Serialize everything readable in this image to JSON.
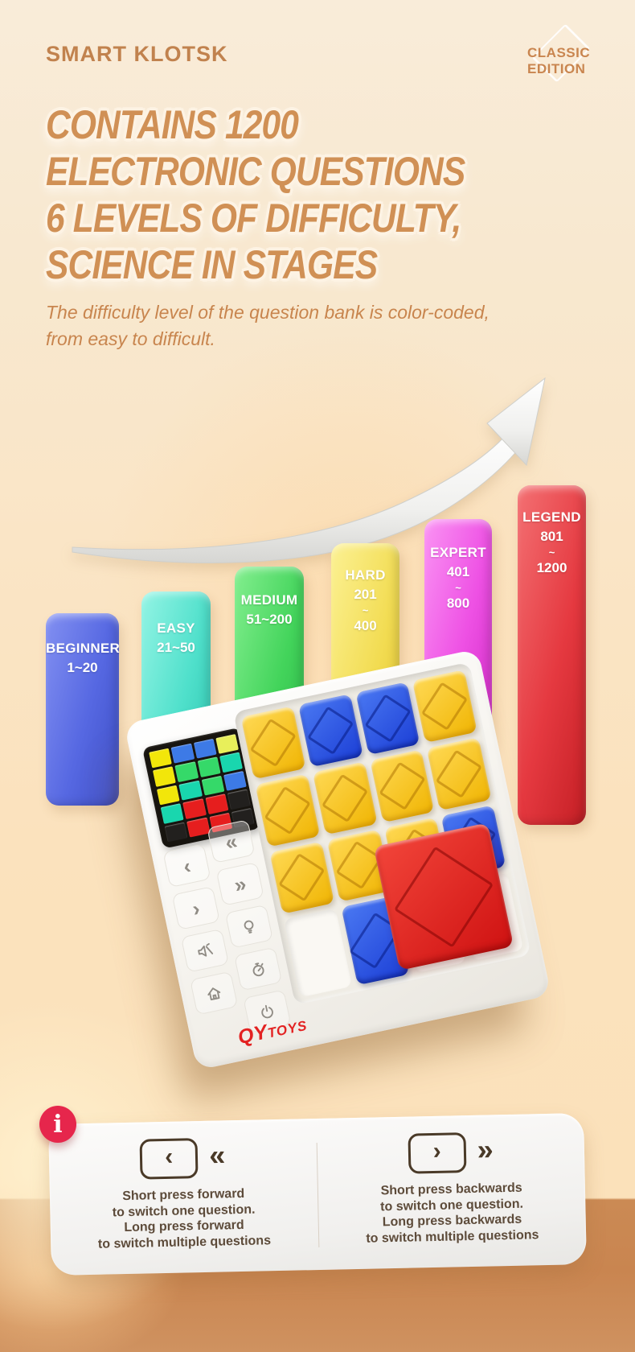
{
  "header": {
    "brand": "SMART KLOTSK",
    "badge": [
      "CLASSIC",
      "EDITION"
    ]
  },
  "headline": {
    "line1": "CONTAINS 1200",
    "line2": "ELECTRONIC QUESTIONS",
    "line3": "6 LEVELS OF DIFFICULTY,",
    "line4": "SCIENCE IN STAGES"
  },
  "subheadline": {
    "line1": "The difficulty level of the question bank is color-coded,",
    "line2": "from easy to difficult."
  },
  "chart_data": {
    "type": "bar",
    "title": "Question bank difficulty levels",
    "categories": [
      "BEGINNER",
      "EASY",
      "MEDIUM",
      "HARD",
      "EXPERT",
      "LEGEND"
    ],
    "series": [
      {
        "name": "range_start",
        "values": [
          1,
          21,
          51,
          201,
          401,
          801
        ]
      },
      {
        "name": "range_end",
        "values": [
          20,
          50,
          200,
          400,
          800,
          1200
        ]
      }
    ],
    "bar_colors": [
      "#5668e2",
      "#4fe0cb",
      "#43d45b",
      "#f2dc52",
      "#ee51e4",
      "#e53940"
    ],
    "legend_position": "none",
    "grid": false
  },
  "bars": [
    {
      "label": "BEGINNER",
      "r1": "1~20"
    },
    {
      "label": "EASY",
      "r1": "21~50"
    },
    {
      "label": "MEDIUM",
      "r1": "51~200"
    },
    {
      "label": "HARD",
      "r1": "201",
      "r2": "~",
      "r3": "400"
    },
    {
      "label": "EXPERT",
      "r1": "401",
      "r2": "~",
      "r3": "800"
    },
    {
      "label": "LEGEND",
      "r1": "801",
      "r2": "~",
      "r3": "1200"
    }
  ],
  "console": {
    "logo": {
      "qy": "QY",
      "toys": "TOYS"
    },
    "controls": {
      "prev": "‹",
      "fast_prev": "«",
      "next": "›",
      "fast_next": "»"
    },
    "icon_names": [
      "mute-icon",
      "hint-bulb-icon",
      "timer-icon",
      "power-icon",
      "home-icon"
    ],
    "led_grid": [
      [
        "#f2e60a",
        "#3d7ae6",
        "#3d7ae6",
        "#e8ef5a"
      ],
      [
        "#f2e60a",
        "#35d969",
        "#35d969",
        "#19d6ae"
      ],
      [
        "#f2e60a",
        "#19d6ae",
        "#35d969",
        "#3d7ae6"
      ],
      [
        "#19d6ae",
        "#e61e1e",
        "#e61e1e",
        "#22201e"
      ],
      [
        "#22201e",
        "#e61e1e",
        "#e61e1e",
        "#22201e"
      ]
    ],
    "tiles": [
      {
        "r": 1,
        "c": 1,
        "color": "yellow"
      },
      {
        "r": 1,
        "c": 2,
        "color": "blue"
      },
      {
        "r": 1,
        "c": 3,
        "color": "blue"
      },
      {
        "r": 1,
        "c": 4,
        "color": "yellow"
      },
      {
        "r": 2,
        "c": 1,
        "color": "yellow"
      },
      {
        "r": 2,
        "c": 2,
        "color": "yellow"
      },
      {
        "r": 2,
        "c": 3,
        "color": "yellow"
      },
      {
        "r": 2,
        "c": 4,
        "color": "yellow"
      },
      {
        "r": 3,
        "c": 1,
        "color": "yellow"
      },
      {
        "r": 3,
        "c": 2,
        "color": "yellow"
      },
      {
        "r": 3,
        "c": 3,
        "color": "yellow"
      },
      {
        "r": 3,
        "c": 4,
        "color": "blue"
      },
      {
        "r": 4,
        "c": 1,
        "color": "empty"
      },
      {
        "r": 4,
        "c": 2,
        "color": "blue"
      },
      {
        "r": 4,
        "c": 3,
        "color": "empty"
      },
      {
        "r": 4,
        "c": 4,
        "color": "empty"
      },
      {
        "abs": true,
        "color": "red"
      }
    ]
  },
  "instructions": {
    "info_glyph": "i",
    "left": {
      "key": "‹",
      "fast": "«",
      "lines": [
        "Short press forward",
        "to switch one question.",
        "Long press forward",
        "to switch multiple questions"
      ]
    },
    "right": {
      "key": "›",
      "fast": "»",
      "lines": [
        "Short press backwards",
        "to switch one question.",
        "Long press backwards",
        "to switch multiple questions"
      ]
    }
  }
}
